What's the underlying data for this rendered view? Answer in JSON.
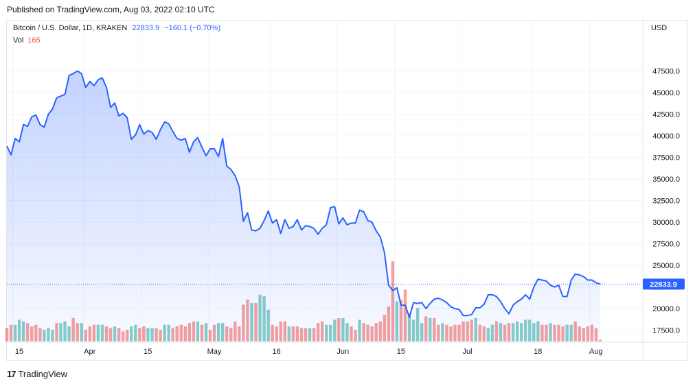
{
  "header": {
    "published": "Published on TradingView.com, Aug 03, 2022 02:10 UTC"
  },
  "legend": {
    "symbol": "Bitcoin / U.S. Dollar, 1D, KRAKEN",
    "last": "22833.9",
    "change": "−160.1 (−0.70%)",
    "vol_label": "Vol",
    "vol_value": "165"
  },
  "axis": {
    "unit": "USD"
  },
  "footer": {
    "brand": "TradingView",
    "logo_glyph": "17"
  },
  "colors": {
    "line": "#2962ff",
    "vol_up": "#26a69a",
    "vol_down": "#ef5350"
  },
  "chart_data": {
    "type": "area",
    "price_axis": {
      "ticks": [
        17500,
        20000,
        22500,
        25000,
        27500,
        30000,
        32500,
        35000,
        37500,
        40000,
        42500,
        45000,
        47500
      ],
      "tick_labels": [
        "17500.0",
        "20000.0",
        "22500.0",
        "25000.0",
        "27500.0",
        "30000.0",
        "32500.0",
        "35000.0",
        "37500.0",
        "40000.0",
        "42500.0",
        "45000.0",
        "47500.0"
      ],
      "range": [
        16200,
        50800
      ]
    },
    "time_axis": {
      "labels": [
        {
          "text": "15",
          "day": 0
        },
        {
          "text": "Apr",
          "day": 17
        },
        {
          "text": "15",
          "day": 31
        },
        {
          "text": "May",
          "day": 47
        },
        {
          "text": "16",
          "day": 62
        },
        {
          "text": "Jun",
          "day": 78
        },
        {
          "text": "15",
          "day": 92
        },
        {
          "text": "Jul",
          "day": 108
        },
        {
          "text": "18",
          "day": 125
        },
        {
          "text": "Aug",
          "day": 139
        }
      ],
      "days": 141
    },
    "last_price": 22833.9,
    "last_price_label": "22833.9",
    "close": [
      38800,
      37800,
      39700,
      39300,
      41300,
      41100,
      42200,
      42400,
      41300,
      41000,
      42500,
      43100,
      44400,
      44600,
      44800,
      47000,
      47200,
      47500,
      47200,
      45600,
      46300,
      45800,
      46500,
      46700,
      45600,
      43300,
      43800,
      42300,
      42600,
      42100,
      39600,
      40100,
      41300,
      40200,
      40600,
      40400,
      39600,
      40700,
      41600,
      41400,
      40500,
      39700,
      39500,
      39700,
      38100,
      39300,
      39800,
      38700,
      37700,
      38500,
      38500,
      37600,
      39700,
      36500,
      36100,
      35400,
      34100,
      30100,
      31100,
      29100,
      29000,
      29300,
      30200,
      31300,
      29900,
      30300,
      28700,
      30300,
      29300,
      29500,
      30300,
      29100,
      29600,
      29500,
      29300,
      28600,
      29300,
      29700,
      31700,
      31800,
      29800,
      30500,
      29700,
      29900,
      29900,
      31400,
      31200,
      30200,
      30000,
      29000,
      28300,
      26500,
      22700,
      22100,
      22400,
      20400,
      20400,
      19000,
      20700,
      20600,
      20700,
      20000,
      20600,
      21100,
      21200,
      21000,
      20700,
      20200,
      20000,
      19900,
      19200,
      19200,
      19300,
      20100,
      20100,
      20500,
      21600,
      21600,
      21400,
      20800,
      20000,
      19400,
      20400,
      20800,
      21100,
      21600,
      21100,
      22500,
      23400,
      23300,
      23200,
      22700,
      22500,
      22700,
      21400,
      21400,
      23300,
      24000,
      23900,
      23700,
      23300,
      23300,
      23000,
      22833.9
    ],
    "volume_up": [
      false,
      false,
      true,
      true,
      true,
      false,
      false,
      false,
      false,
      true,
      true,
      true,
      false,
      true,
      true,
      true,
      false,
      false,
      true,
      false,
      false,
      false,
      true,
      true,
      false,
      false,
      true,
      false,
      false,
      false,
      true,
      true,
      false,
      false,
      true,
      true,
      false,
      false,
      true,
      true,
      false,
      false,
      false,
      false,
      false,
      false,
      true,
      false,
      true,
      false,
      false,
      true,
      true,
      false,
      false,
      false,
      false,
      false,
      false,
      true,
      false,
      true,
      true,
      true,
      false,
      false,
      false,
      false,
      true,
      false,
      false,
      false,
      false,
      true,
      false,
      false,
      false,
      true,
      true,
      true,
      false,
      true,
      true,
      false,
      false,
      true,
      false,
      false,
      false,
      false,
      false,
      false,
      false,
      false,
      true,
      false,
      false,
      true,
      true,
      true,
      true,
      false,
      true,
      false,
      false,
      true,
      false,
      false,
      false,
      false,
      false,
      false,
      false,
      true,
      false,
      false,
      true,
      true,
      false,
      true,
      false,
      false,
      true,
      true,
      true,
      true,
      true,
      true,
      true,
      false,
      false,
      true,
      false,
      false,
      false,
      true,
      true,
      false,
      false,
      false,
      false,
      false,
      false,
      false
    ],
    "volume": [
      8,
      10,
      10,
      13,
      12,
      11,
      9,
      10,
      8,
      7,
      8,
      7,
      11,
      11,
      12,
      9,
      14,
      11,
      11,
      7,
      9,
      10,
      10,
      10,
      9,
      8,
      9,
      8,
      6,
      7,
      9,
      10,
      8,
      9,
      8,
      8,
      8,
      7,
      10,
      10,
      8,
      9,
      10,
      9,
      11,
      12,
      12,
      10,
      11,
      7,
      10,
      11,
      11,
      9,
      8,
      12,
      9,
      22,
      25,
      23,
      23,
      28,
      27,
      19,
      10,
      9,
      12,
      12,
      9,
      9,
      9,
      8,
      8,
      8,
      8,
      11,
      12,
      10,
      10,
      13,
      14,
      14,
      11,
      9,
      7,
      13,
      11,
      10,
      9,
      11,
      12,
      16,
      21,
      48,
      24,
      25,
      31,
      17,
      13,
      20,
      11,
      15,
      14,
      14,
      10,
      11,
      10,
      9,
      10,
      10,
      12,
      12,
      13,
      14,
      10,
      9,
      8,
      10,
      12,
      11,
      10,
      11,
      11,
      12,
      11,
      13,
      13,
      11,
      12,
      10,
      10,
      11,
      10,
      10,
      9,
      10,
      10,
      12,
      9,
      8,
      9,
      10,
      8,
      1
    ]
  }
}
